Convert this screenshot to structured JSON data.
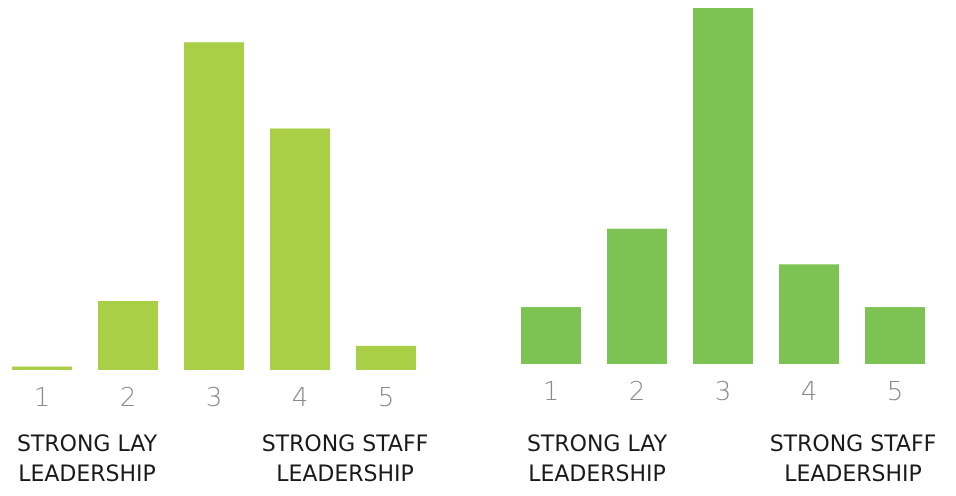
{
  "chart_data": [
    {
      "type": "bar",
      "categories": [
        "1",
        "2",
        "3",
        "4",
        "5"
      ],
      "values": [
        1,
        20,
        95,
        70,
        7
      ],
      "ylim": [
        0,
        100
      ],
      "color": "#a8cf45",
      "left_label": [
        "STRONG LAY",
        "LEADERSHIP"
      ],
      "right_label": [
        "STRONG STAFF",
        "LEADERSHIP"
      ]
    },
    {
      "type": "bar",
      "categories": [
        "1",
        "2",
        "3",
        "4",
        "5"
      ],
      "values": [
        16,
        38,
        100,
        28,
        16
      ],
      "ylim": [
        0,
        100
      ],
      "color": "#7dc354",
      "left_label": [
        "STRONG LAY",
        "LEADERSHIP"
      ],
      "right_label": [
        "STRONG STAFF",
        "LEADERSHIP"
      ]
    }
  ]
}
